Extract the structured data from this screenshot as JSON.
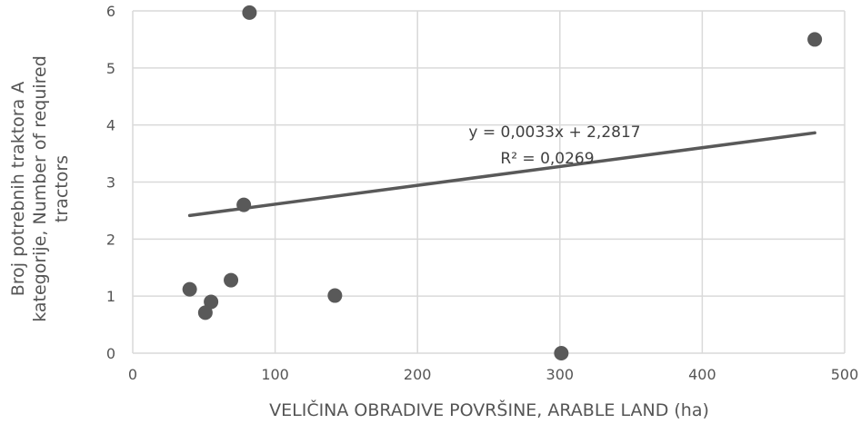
{
  "chart_data": {
    "type": "scatter",
    "xlabel": "VELIČINA OBRADIVE POVRŠINE, ARABLE LAND (ha)",
    "ylabel_lines": [
      "Broj potrebnih traktora A",
      "kategorije, Number of required",
      "tractors"
    ],
    "xlim": [
      0,
      500
    ],
    "ylim": [
      0,
      6
    ],
    "x_ticks": [
      0,
      100,
      200,
      300,
      400,
      500
    ],
    "y_ticks": [
      0,
      1,
      2,
      3,
      4,
      5,
      6
    ],
    "grid": "vertical and horizontal",
    "points": [
      {
        "x": 82,
        "y": 5.97
      },
      {
        "x": 479,
        "y": 5.5
      },
      {
        "x": 78,
        "y": 2.6
      },
      {
        "x": 40,
        "y": 1.12
      },
      {
        "x": 69,
        "y": 1.28
      },
      {
        "x": 55,
        "y": 0.9
      },
      {
        "x": 51,
        "y": 0.71
      },
      {
        "x": 142,
        "y": 1.01
      },
      {
        "x": 301,
        "y": 0.0
      }
    ],
    "trendline": {
      "type": "linear",
      "slope": 0.0033,
      "intercept": 2.2817,
      "x_range": [
        40,
        479
      ],
      "equation": "y = 0,0033x + 2,2817",
      "r_squared": "R² = 0,0269"
    },
    "colors": {
      "point": "#595959",
      "trendline": "#595959",
      "grid": "#d9d9d9",
      "text": "#595959"
    }
  }
}
